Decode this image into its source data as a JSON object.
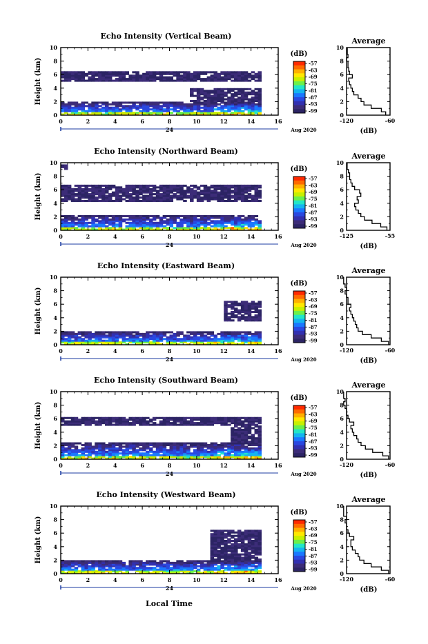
{
  "figure": {
    "xlabel": "Local Time",
    "date_label": "Aug 2020",
    "day_label": "24",
    "colorbar_unit": "(dB)",
    "colorbar_ticks": [
      "-57",
      "-63",
      "-69",
      "-75",
      "-81",
      "-87",
      "-93",
      "-99"
    ],
    "colorbar_colors": [
      "#ff2a00",
      "#ff6a00",
      "#ffb000",
      "#ffe800",
      "#c8f000",
      "#6cf04a",
      "#22e6c8",
      "#14b4f0",
      "#1a78ff",
      "#2a48e0",
      "#3230b0",
      "#3c2c78",
      "#2c2464"
    ],
    "avg_title": "Average",
    "avg_xlabel": "(dB)"
  },
  "chart_data": [
    {
      "type": "heatmap",
      "title": "Echo Intensity (Vertical Beam)",
      "ylabel": "Height (km)",
      "xlim": [
        0,
        16
      ],
      "ylim": [
        0,
        10
      ],
      "x_ticks": [
        "0",
        "2",
        "4",
        "6",
        "8",
        "10",
        "12",
        "14",
        "16"
      ],
      "y_ticks": [
        "0",
        "2",
        "4",
        "6",
        "8",
        "10"
      ],
      "colorbar_range_db": [
        -99,
        -57
      ],
      "data_end_hour": 14.7,
      "bands": [
        {
          "y0": 0.0,
          "y1": 2.0,
          "level_db": -96
        },
        {
          "y0": 4.8,
          "y1": 6.4,
          "level_db": -99
        },
        {
          "y0": 2.0,
          "y1": 4.0,
          "level_db": -99,
          "x0": 9.5
        }
      ],
      "average": {
        "title": "Average",
        "xlabel": "(dB)",
        "xlim": [
          -120,
          -60
        ],
        "x_ticks": [
          "-120",
          "-60"
        ],
        "height_km": [
          0,
          0.5,
          1,
          1.5,
          2,
          2.5,
          3,
          3.5,
          4,
          4.5,
          5,
          5.5,
          6,
          6.5,
          7,
          7.5,
          8,
          8.5,
          9,
          9.5
        ],
        "db": [
          -66,
          -72,
          -86,
          -96,
          -100,
          -104,
          -110,
          -112,
          -114,
          -116,
          -117,
          -112,
          -116,
          -117,
          -118,
          -118,
          -120,
          -118,
          -119,
          -119
        ]
      }
    },
    {
      "type": "heatmap",
      "title": "Echo Intensity (Northward Beam)",
      "ylabel": "Height (km)",
      "xlim": [
        0,
        16
      ],
      "ylim": [
        0,
        10
      ],
      "x_ticks": [
        "0",
        "2",
        "4",
        "6",
        "8",
        "10",
        "12",
        "14",
        "16"
      ],
      "y_ticks": [
        "0",
        "2",
        "4",
        "6",
        "8",
        "10"
      ],
      "colorbar_range_db": [
        -99,
        -57
      ],
      "data_end_hour": 14.7,
      "bands": [
        {
          "y0": 0.0,
          "y1": 2.2,
          "level_db": -96
        },
        {
          "y0": 4.2,
          "y1": 6.6,
          "level_db": -99
        },
        {
          "y0": 9.0,
          "y1": 9.6,
          "level_db": -99,
          "x1": 0.5
        }
      ],
      "average": {
        "title": "Average",
        "xlabel": "(dB)",
        "xlim": [
          -125,
          -55
        ],
        "x_ticks": [
          "-125",
          "-55"
        ],
        "height_km": [
          0,
          0.5,
          1,
          1.5,
          2,
          2.5,
          3,
          3.5,
          4,
          4.5,
          5,
          5.5,
          6,
          6.5,
          7,
          7.5,
          8,
          8.5,
          9,
          9.5
        ],
        "db": [
          -60,
          -70,
          -84,
          -96,
          -102,
          -106,
          -110,
          -112,
          -106,
          -108,
          -102,
          -104,
          -112,
          -116,
          -118,
          -120,
          -120,
          -122,
          -124,
          -124
        ]
      }
    },
    {
      "type": "heatmap",
      "title": "Echo Intensity (Eastward Beam)",
      "ylabel": "Height (km)",
      "xlim": [
        0,
        16
      ],
      "ylim": [
        0,
        10
      ],
      "x_ticks": [
        "0",
        "2",
        "4",
        "6",
        "8",
        "10",
        "12",
        "14",
        "16"
      ],
      "y_ticks": [
        "0",
        "2",
        "4",
        "6",
        "8",
        "10"
      ],
      "colorbar_range_db": [
        -99,
        -57
      ],
      "data_end_hour": 14.7,
      "bands": [
        {
          "y0": 0.0,
          "y1": 2.0,
          "level_db": -96
        },
        {
          "y0": 3.5,
          "y1": 6.5,
          "level_db": -99,
          "x0": 12.0
        }
      ],
      "average": {
        "title": "Average",
        "xlabel": "(dB)",
        "xlim": [
          -120,
          -60
        ],
        "x_ticks": [
          "-120",
          "-60"
        ],
        "height_km": [
          0,
          0.5,
          1,
          1.5,
          2,
          2.5,
          3,
          3.5,
          4,
          4.5,
          5,
          5.5,
          6,
          6.5,
          7,
          7.5,
          8,
          8.5,
          9,
          9.5
        ],
        "db": [
          -62,
          -72,
          -86,
          -98,
          -104,
          -106,
          -108,
          -110,
          -112,
          -114,
          -116,
          -114,
          -118,
          -118,
          -120,
          -122,
          -120,
          -122,
          -124,
          -124
        ]
      }
    },
    {
      "type": "heatmap",
      "title": "Echo Intensity (Southward Beam)",
      "ylabel": "Height (km)",
      "xlim": [
        0,
        16
      ],
      "ylim": [
        0,
        10
      ],
      "x_ticks": [
        "0",
        "2",
        "4",
        "6",
        "8",
        "10",
        "12",
        "14",
        "16"
      ],
      "y_ticks": [
        "0",
        "2",
        "4",
        "6",
        "8",
        "10"
      ],
      "colorbar_range_db": [
        -99,
        -57
      ],
      "data_end_hour": 14.7,
      "bands": [
        {
          "y0": 0.0,
          "y1": 2.4,
          "level_db": -96
        },
        {
          "y0": 4.8,
          "y1": 6.2,
          "level_db": -99
        },
        {
          "y0": 2.4,
          "y1": 4.8,
          "level_db": -99,
          "x0": 12.5
        }
      ],
      "average": {
        "title": "Average",
        "xlabel": "(dB)",
        "xlim": [
          -120,
          -60
        ],
        "x_ticks": [
          "-120",
          "-60"
        ],
        "height_km": [
          0,
          0.5,
          1,
          1.5,
          2,
          2.5,
          3,
          3.5,
          4,
          4.5,
          5,
          5.5,
          6,
          6.5,
          7,
          7.5,
          8,
          8.5,
          9,
          9.5
        ],
        "db": [
          -62,
          -70,
          -84,
          -94,
          -100,
          -104,
          -106,
          -110,
          -112,
          -114,
          -110,
          -116,
          -118,
          -120,
          -120,
          -122,
          -124,
          -122,
          -124,
          -124
        ]
      }
    },
    {
      "type": "heatmap",
      "title": "Echo Intensity (Westward Beam)",
      "ylabel": "Height (km)",
      "xlabel": "Local Time",
      "xlim": [
        0,
        16
      ],
      "ylim": [
        0,
        10
      ],
      "x_ticks": [
        "0",
        "2",
        "4",
        "6",
        "8",
        "10",
        "12",
        "14",
        "16"
      ],
      "y_ticks": [
        "0",
        "2",
        "4",
        "6",
        "8",
        "10"
      ],
      "colorbar_range_db": [
        -99,
        -57
      ],
      "data_end_hour": 14.7,
      "bands": [
        {
          "y0": 0.0,
          "y1": 2.0,
          "level_db": -96
        },
        {
          "y0": 2.0,
          "y1": 6.4,
          "level_db": -99,
          "x0": 10.8
        }
      ],
      "average": {
        "title": "Average",
        "xlabel": "(dB)",
        "xlim": [
          -120,
          -60
        ],
        "x_ticks": [
          "-120",
          "-60"
        ],
        "height_km": [
          0,
          0.5,
          1,
          1.5,
          2,
          2.5,
          3,
          3.5,
          4,
          4.5,
          5,
          5.5,
          6,
          6.5,
          7,
          7.5,
          8,
          8.5,
          9,
          9.5
        ],
        "db": [
          -62,
          -72,
          -86,
          -96,
          -102,
          -104,
          -108,
          -112,
          -114,
          -114,
          -110,
          -116,
          -118,
          -120,
          -120,
          -122,
          -120,
          -124,
          -124,
          -124
        ]
      }
    }
  ]
}
